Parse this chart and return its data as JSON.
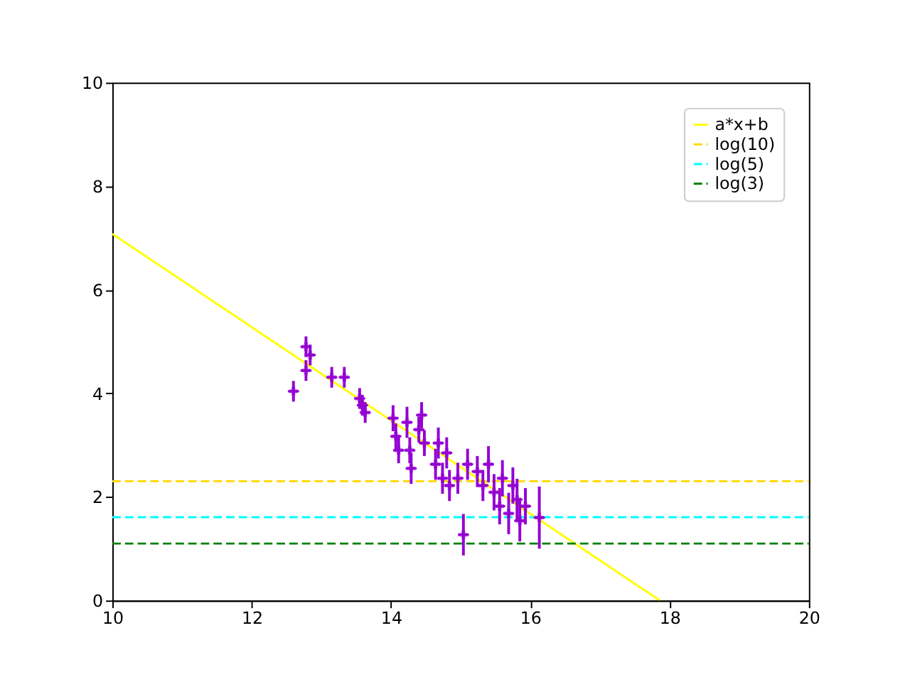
{
  "chart_data": {
    "type": "scatter",
    "xlim": [
      10,
      20
    ],
    "ylim": [
      0,
      10
    ],
    "xticks": [
      10,
      12,
      14,
      16,
      18,
      20
    ],
    "yticks": [
      0,
      2,
      4,
      6,
      8,
      10
    ],
    "grid": false,
    "legend": "top right",
    "series": [
      {
        "color": "#9400d3",
        "marker": "cross",
        "x": [
          12.6,
          12.78,
          12.78,
          12.84,
          13.15,
          13.33,
          13.55,
          13.59,
          13.63,
          14.03,
          14.07,
          14.11,
          14.23,
          14.27,
          14.29,
          14.4,
          14.44,
          14.48,
          14.64,
          14.68,
          14.74,
          14.8,
          14.84,
          14.96,
          15.04,
          15.1,
          15.24,
          15.32,
          15.4,
          15.48,
          15.56,
          15.6,
          15.69,
          15.75,
          15.81,
          15.85,
          15.93,
          16.13
        ],
        "values": [
          4.04,
          4.9,
          4.44,
          4.74,
          4.31,
          4.31,
          3.9,
          3.77,
          3.63,
          3.52,
          3.17,
          2.9,
          3.44,
          2.9,
          2.55,
          3.3,
          3.58,
          3.04,
          2.63,
          3.04,
          2.36,
          2.85,
          2.22,
          2.36,
          1.27,
          2.63,
          2.49,
          2.22,
          2.63,
          2.09,
          1.82,
          2.36,
          1.68,
          2.22,
          1.95,
          1.54,
          1.82,
          1.6
        ],
        "errors": [
          0.2,
          0.2,
          0.2,
          0.2,
          0.2,
          0.2,
          0.2,
          0.2,
          0.2,
          0.25,
          0.25,
          0.25,
          0.3,
          0.25,
          0.3,
          0.25,
          0.25,
          0.25,
          0.3,
          0.3,
          0.3,
          0.3,
          0.3,
          0.3,
          0.4,
          0.3,
          0.3,
          0.3,
          0.35,
          0.35,
          0.35,
          0.35,
          0.4,
          0.35,
          0.4,
          0.4,
          0.35,
          0.6
        ],
        "xerrors": [
          0.08,
          0.08,
          0.08,
          0.08,
          0.08,
          0.08,
          0.08,
          0.08,
          0.08,
          0.08,
          0.08,
          0.08,
          0.08,
          0.08,
          0.08,
          0.08,
          0.08,
          0.08,
          0.08,
          0.08,
          0.08,
          0.08,
          0.08,
          0.08,
          0.08,
          0.08,
          0.08,
          0.08,
          0.08,
          0.08,
          0.08,
          0.08,
          0.08,
          0.08,
          0.08,
          0.08,
          0.08,
          0.08
        ]
      },
      {
        "type": "line",
        "name": "a*x+b",
        "color": "#ffff00",
        "line_style": "solid",
        "x": [
          10,
          17.86
        ],
        "values": [
          7.08,
          0
        ]
      }
    ],
    "ref_lines": [
      {
        "axis": "y",
        "value": 2.303,
        "label": "log(10)",
        "color": "#ffd700",
        "line_style": "dashed"
      },
      {
        "axis": "y",
        "value": 1.609,
        "label": "log(5)",
        "color": "#00ffff",
        "line_style": "dashed"
      },
      {
        "axis": "y",
        "value": 1.099,
        "label": "log(3)",
        "color": "#008000",
        "line_style": "dashed"
      }
    ]
  }
}
